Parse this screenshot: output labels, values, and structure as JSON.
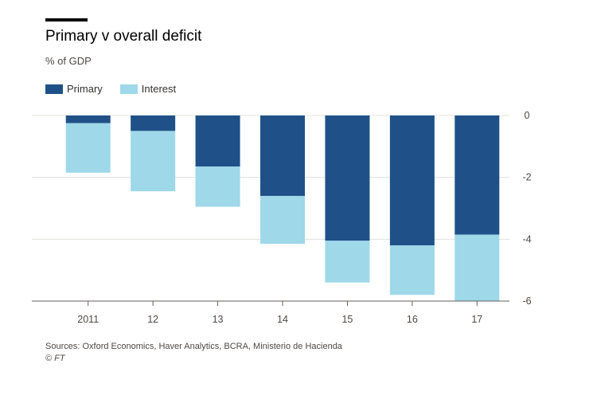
{
  "title": "Primary v overall deficit",
  "subtitle": "% of GDP",
  "legend": [
    {
      "label": "Primary",
      "color": "#1f5188"
    },
    {
      "label": "Interest",
      "color": "#9ed8e9"
    }
  ],
  "source": "Sources: Oxford Economics, Haver Analytics, BCRA, Ministerio de Hacienda",
  "credit": "© FT",
  "chart_data": {
    "type": "bar",
    "stacked": true,
    "categories": [
      "2011",
      "12",
      "13",
      "14",
      "15",
      "16",
      "17"
    ],
    "series": [
      {
        "name": "Primary",
        "color": "#1f5188",
        "values": [
          -0.25,
          -0.5,
          -1.65,
          -2.6,
          -4.05,
          -4.2,
          -3.85
        ]
      },
      {
        "name": "Interest",
        "color": "#9ed8e9",
        "values": [
          -1.6,
          -1.95,
          -1.3,
          -1.55,
          -1.35,
          -1.6,
          -2.15
        ]
      }
    ],
    "ylim": [
      -6,
      0
    ],
    "yticks": [
      0,
      -2,
      -4,
      -6
    ],
    "ytick_labels": [
      "0",
      "-2",
      "-4",
      "-6"
    ],
    "y_axis_side": "right",
    "grid": true
  }
}
